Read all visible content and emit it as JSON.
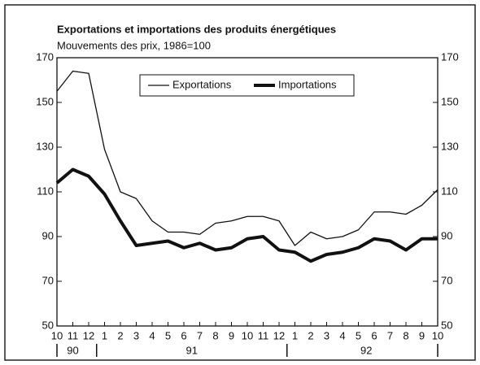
{
  "chart_data": {
    "type": "line",
    "title": "Exportations et importations des produits énergétiques",
    "subtitle": "Mouvements des prix, 1986=100",
    "categories": [
      "10",
      "11",
      "12",
      "1",
      "2",
      "3",
      "4",
      "5",
      "6",
      "7",
      "8",
      "9",
      "10",
      "11",
      "12",
      "1",
      "2",
      "3",
      "4",
      "5",
      "6",
      "7",
      "8",
      "9",
      "10"
    ],
    "years": [
      "90",
      "91",
      "92"
    ],
    "series": [
      {
        "name": "Exportations",
        "color": "#111111",
        "width": 1.3,
        "values": [
          155,
          164,
          163,
          129,
          110,
          107,
          97,
          92,
          92,
          91,
          96,
          97,
          99,
          99,
          97,
          86,
          92,
          89,
          90,
          93,
          101,
          101,
          100,
          104,
          111
        ]
      },
      {
        "name": "Importations",
        "color": "#111111",
        "width": 4,
        "values": [
          114,
          120,
          117,
          109,
          97,
          86,
          87,
          88,
          85,
          87,
          84,
          85,
          89,
          90,
          84,
          83,
          79,
          82,
          83,
          85,
          89,
          88,
          84,
          89,
          89
        ]
      }
    ],
    "ylim": [
      50,
      170
    ],
    "yticks": [
      50,
      70,
      90,
      110,
      130,
      150,
      170
    ]
  }
}
